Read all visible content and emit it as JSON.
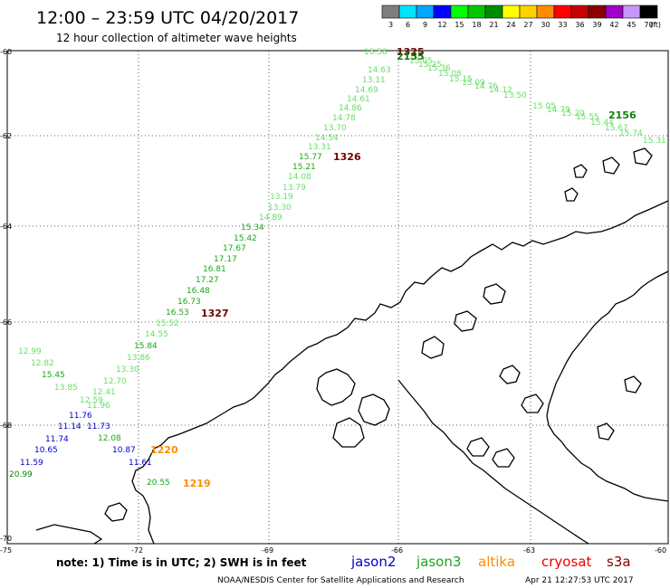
{
  "header": {
    "title": "12:00 – 23:59 UTC 04/20/2017",
    "subtitle": "12 hour collection of altimeter wave heights"
  },
  "colorbar": {
    "unit": "(ft)",
    "bins": [
      {
        "label": "3",
        "color": "#7f7f7f"
      },
      {
        "label": "6",
        "color": "#00e5ff"
      },
      {
        "label": "9",
        "color": "#00a8ff"
      },
      {
        "label": "12",
        "color": "#0000ff"
      },
      {
        "label": "15",
        "color": "#00ff00"
      },
      {
        "label": "18",
        "color": "#00c800"
      },
      {
        "label": "21",
        "color": "#008c00"
      },
      {
        "label": "24",
        "color": "#ffff00"
      },
      {
        "label": "27",
        "color": "#ffd200"
      },
      {
        "label": "30",
        "color": "#ff8c00"
      },
      {
        "label": "33",
        "color": "#ff0000"
      },
      {
        "label": "36",
        "color": "#c80000"
      },
      {
        "label": "39",
        "color": "#8c0000"
      },
      {
        "label": "42",
        "color": "#a000c8"
      },
      {
        "label": "45",
        "color": "#c896ff"
      },
      {
        "label": "70",
        "color": "#000000"
      }
    ]
  },
  "axes": {
    "lat_labels": [
      "-60",
      "-62",
      "-64",
      "-66",
      "-68",
      "-70"
    ],
    "lon_labels": [
      "-75",
      "-72",
      "-69",
      "-66",
      "-63",
      "-60"
    ],
    "grid": "dotted"
  },
  "colors": {
    "light_green": "#66e066",
    "green": "#18a818",
    "dark_green": "#108010",
    "blue": "#0000cc",
    "orange": "#ff8c00",
    "dark_red": "#6e0000"
  },
  "tracks": {
    "main_track_values": [
      "16.58",
      "14.63",
      "13.11",
      "14.69",
      "14.61",
      "14.86",
      "14.78",
      "13.70",
      "14.54",
      "13.31",
      "15.77",
      "15.21",
      "14.08",
      "13.79",
      "13.19",
      "13.30",
      "14.89",
      "15.34",
      "15.42",
      "17.67",
      "17.17",
      "16.81",
      "17.27",
      "16.48",
      "16.73",
      "16.53",
      "15.52",
      "14.55",
      "15.84",
      "13.86",
      "13.30",
      "12.70",
      "12.41",
      "12.59",
      "11.96"
    ],
    "left_values": [
      "12.99",
      "12.82",
      "15.45",
      "13.85"
    ],
    "blue_values": [
      "11.76",
      "11.14",
      "11.73",
      "11.74",
      "10.65",
      "11.59",
      "10.87",
      "11.61"
    ],
    "green_values": [
      "12.08",
      "20.99"
    ],
    "bottom_value": "20.55",
    "time_labels": [
      "1325",
      "1326",
      "1327",
      "1220",
      "1219"
    ],
    "top_cluster_label": "2155",
    "right_cluster_label": "2156",
    "top_overlap_values": [
      "15.05",
      "15.25",
      "15.36",
      "15.08",
      "15.15",
      "15.09",
      "14.76",
      "14.12",
      "13.50"
    ],
    "right_track_values": [
      "15.05",
      "14.79",
      "15.20",
      "15.55",
      "15.44",
      "15.67",
      "15.74",
      "15.31"
    ]
  },
  "footer": {
    "note": "note: 1) Time is in UTC; 2) SWH is in feet",
    "legend": [
      {
        "name": "jason2",
        "color": "#0000cc"
      },
      {
        "name": "jason3",
        "color": "#18a818"
      },
      {
        "name": "altika",
        "color": "#ff8c00"
      },
      {
        "name": "cryosat",
        "color": "#ee0000"
      },
      {
        "name": "s3a",
        "color": "#8c0000"
      }
    ],
    "credit": "NOAA/NESDIS Center for Satellite Applications and Research",
    "timestamp": "Apr 21 12:27:53 UTC 2017"
  }
}
